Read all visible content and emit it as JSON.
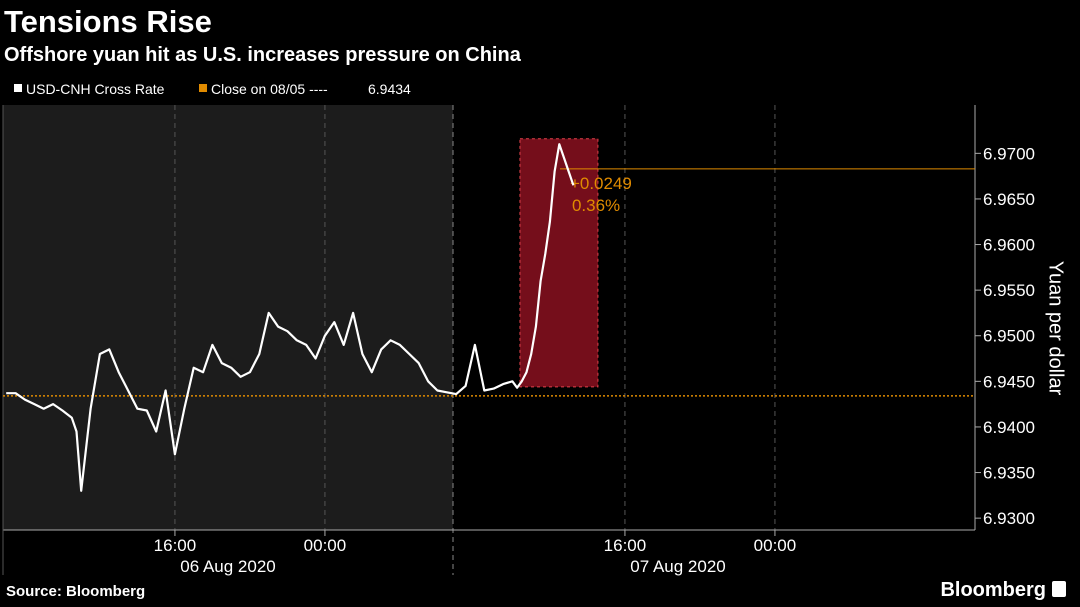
{
  "chart_data": {
    "type": "line",
    "title": "Tensions Rise",
    "subtitle": "Offshore yuan hit as U.S. increases pressure on China",
    "source": "Source: Bloomberg",
    "brand": "Bloomberg",
    "y_axis_label": "Yuan per dollar",
    "date_labels": [
      "06 Aug 2020",
      "07 Aug 2020"
    ],
    "series": [
      {
        "name": "USD-CNH Cross Rate",
        "color": "#ffffff",
        "x": [
          7,
          7.5,
          8,
          8.5,
          9,
          9.5,
          10,
          10.5,
          10.75,
          11,
          11.5,
          12,
          12.5,
          13,
          13.5,
          14,
          14.5,
          15,
          15.5,
          16,
          16.5,
          17,
          17.5,
          18,
          18.5,
          19,
          19.5,
          20,
          20.5,
          21,
          21.5,
          22,
          22.5,
          23,
          23.5,
          24,
          24.5,
          25,
          25.5,
          26,
          26.5,
          27,
          27.5,
          28,
          28.5,
          29,
          29.5,
          30,
          30.5,
          31,
          31.5,
          32,
          32.5,
          33,
          33.5,
          34,
          34.25,
          34.5,
          34.75,
          35,
          35.25,
          35.5,
          35.75,
          36,
          36.25,
          36.5,
          36.75,
          37,
          37.25
        ],
        "values": [
          6.9437,
          6.9437,
          6.943,
          6.9425,
          6.942,
          6.9425,
          6.9418,
          6.941,
          6.9395,
          6.933,
          6.942,
          6.948,
          6.9485,
          6.946,
          6.944,
          6.942,
          6.9418,
          6.9395,
          6.944,
          6.937,
          6.942,
          6.9465,
          6.946,
          6.949,
          6.947,
          6.9465,
          6.9455,
          6.946,
          6.948,
          6.9525,
          6.951,
          6.9505,
          6.9495,
          6.949,
          6.9475,
          6.95,
          6.9515,
          6.949,
          6.9525,
          6.948,
          6.946,
          6.9485,
          6.9495,
          6.949,
          6.948,
          6.947,
          6.945,
          6.944,
          6.9438,
          6.9436,
          6.9445,
          6.949,
          6.944,
          6.9442,
          6.9447,
          6.945,
          6.9443,
          6.945,
          6.946,
          6.948,
          6.951,
          6.956,
          6.959,
          6.9625,
          6.968,
          6.971,
          6.9695,
          6.968,
          6.9665
        ]
      }
    ],
    "close": {
      "name": "Close on 08/05 ----",
      "value": 6.9434,
      "color": "#e08b00"
    },
    "change": {
      "value": 0.0249,
      "label": "+0.0249"
    },
    "change_pct": {
      "value": 0.36,
      "label": "0.36%"
    },
    "highlight": {
      "x": [
        34.4,
        38.56
      ],
      "y": [
        6.9444,
        6.9716
      ],
      "color": "#8a1020"
    },
    "session_break": 30.83,
    "xlim": [
      6.83,
      58.67
    ],
    "xticks": [
      {
        "value": 16,
        "label": "16:00"
      },
      {
        "value": 24,
        "label": "00:00"
      },
      {
        "value": 40,
        "label": "16:00"
      },
      {
        "value": 48,
        "label": "00:00"
      }
    ],
    "ylim": [
      6.9287,
      6.9753
    ],
    "yticks": [
      {
        "value": 6.93,
        "label": "6.9300"
      },
      {
        "value": 6.935,
        "label": "6.9350"
      },
      {
        "value": 6.94,
        "label": "6.9400"
      },
      {
        "value": 6.945,
        "label": "6.9450"
      },
      {
        "value": 6.95,
        "label": "6.9500"
      },
      {
        "value": 6.955,
        "label": "6.9550"
      },
      {
        "value": 6.96,
        "label": "6.9600"
      },
      {
        "value": 6.965,
        "label": "6.9650"
      },
      {
        "value": 6.97,
        "label": "6.9700"
      }
    ],
    "grid": true
  }
}
